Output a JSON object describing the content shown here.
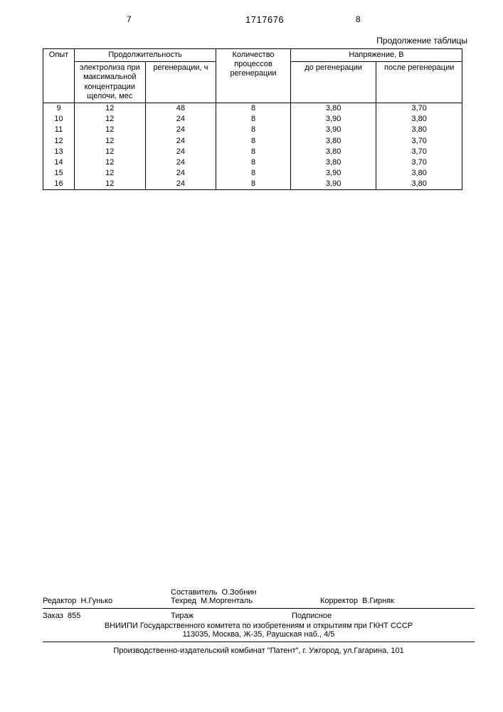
{
  "header": {
    "page_left": "7",
    "doc_number": "1717676",
    "page_right": "8"
  },
  "table": {
    "caption": "Продолжение таблицы",
    "columns": {
      "opyt": "Опыт",
      "duration_group": "Продолжительность",
      "elec": "электролиза при максимальной концентрации щелочи, мес",
      "regen": "регенерации, ч",
      "kol": "Количество процессов регенерации",
      "voltage_group": "Напряжение, В",
      "v_before": "до регенерации",
      "v_after": "после регенерации"
    },
    "rows": [
      {
        "n": "9",
        "e": "12",
        "r": "48",
        "k": "8",
        "vb": "3,80",
        "va": "3,70"
      },
      {
        "n": "10",
        "e": "12",
        "r": "24",
        "k": "8",
        "vb": "3,90",
        "va": "3,80"
      },
      {
        "n": "11",
        "e": "12",
        "r": "24",
        "k": "8",
        "vb": "3,90",
        "va": "3,80"
      },
      {
        "n": "12",
        "e": "12",
        "r": "24",
        "k": "8",
        "vb": "3,80",
        "va": "3,70"
      },
      {
        "n": "13",
        "e": "12",
        "r": "24",
        "k": "8",
        "vb": "3,80",
        "va": "3,70"
      },
      {
        "n": "14",
        "e": "12",
        "r": "24",
        "k": "8",
        "vb": "3,80",
        "va": "3,70"
      },
      {
        "n": "15",
        "e": "12",
        "r": "24",
        "k": "8",
        "vb": "3,90",
        "va": "3,80"
      },
      {
        "n": "16",
        "e": "12",
        "r": "24",
        "k": "8",
        "vb": "3,90",
        "va": "3,80"
      }
    ]
  },
  "footer": {
    "editor_label": "Редактор",
    "editor_name": "Н.Гунько",
    "compiler_label": "Составитель",
    "compiler_name": "О.Зобнин",
    "techred_label": "Техред",
    "techred_name": "М.Моргенталь",
    "corrector_label": "Корректор",
    "corrector_name": "В.Гирняк",
    "order_label": "Заказ",
    "order_num": "855",
    "tirazh_label": "Тираж",
    "podpisnoe": "Подписное",
    "vniipi_line1": "ВНИИПИ Государственного комитета по изобретениям и открытиям при ГКНТ СССР",
    "vniipi_line2": "113035, Москва, Ж-35, Раушская наб., 4/5",
    "bottom": "Производственно-издательский комбинат \"Патент\", г. Ужгород, ул.Гагарина, 101"
  }
}
